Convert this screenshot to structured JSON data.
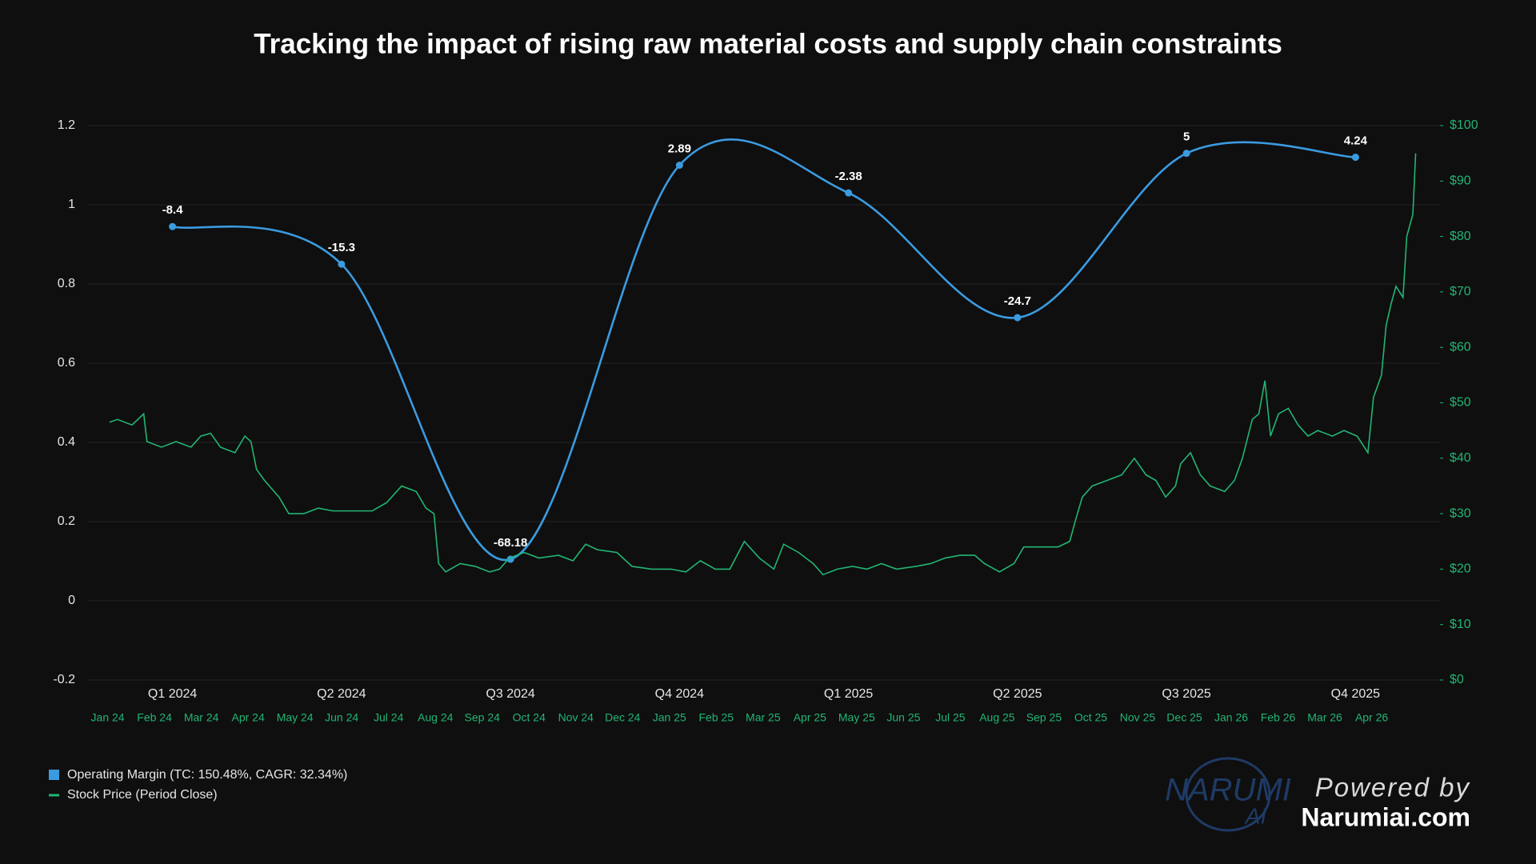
{
  "chart_data": {
    "type": "line",
    "title": "Tracking the impact of rising raw material costs and supply chain constraints",
    "categories": [
      "Q1 2024",
      "Q2 2024",
      "Q3 2024",
      "Q4 2024",
      "Q1 2025",
      "Q2 2025",
      "Q3 2025",
      "Q4 2025"
    ],
    "ylim": [
      -0.2,
      1.2
    ],
    "yticks": [
      -0.2,
      0,
      0.2,
      0.4,
      0.6,
      0.8,
      1,
      1.2
    ],
    "y2lim": [
      0,
      100
    ],
    "y2ticks": [
      {
        "value": 0,
        "label": "$0"
      },
      {
        "value": 10,
        "label": "$10"
      },
      {
        "value": 20,
        "label": "$20"
      },
      {
        "value": 30,
        "label": "$30"
      },
      {
        "value": 40,
        "label": "$40"
      },
      {
        "value": 50,
        "label": "$50"
      },
      {
        "value": 60,
        "label": "$60"
      },
      {
        "value": 70,
        "label": "$70"
      },
      {
        "value": 80,
        "label": "$80"
      },
      {
        "value": 90,
        "label": "$90"
      },
      {
        "value": 100,
        "label": "$100"
      }
    ],
    "x2lim": [
      -0.42,
      28.46
    ],
    "x2ticks": [
      {
        "value": 0,
        "label": "Jan 24"
      },
      {
        "value": 1,
        "label": "Feb 24"
      },
      {
        "value": 2,
        "label": "Mar 24"
      },
      {
        "value": 3,
        "label": "Apr 24"
      },
      {
        "value": 4,
        "label": "May 24"
      },
      {
        "value": 5,
        "label": "Jun 24"
      },
      {
        "value": 6,
        "label": "Jul 24"
      },
      {
        "value": 7,
        "label": "Aug 24"
      },
      {
        "value": 8,
        "label": "Sep 24"
      },
      {
        "value": 9,
        "label": "Oct 24"
      },
      {
        "value": 10,
        "label": "Nov 24"
      },
      {
        "value": 11,
        "label": "Dec 24"
      },
      {
        "value": 12,
        "label": "Jan 25"
      },
      {
        "value": 13,
        "label": "Feb 25"
      },
      {
        "value": 14,
        "label": "Mar 25"
      },
      {
        "value": 15,
        "label": "Apr 25"
      },
      {
        "value": 16,
        "label": "May 25"
      },
      {
        "value": 17,
        "label": "Jun 25"
      },
      {
        "value": 18,
        "label": "Jul 25"
      },
      {
        "value": 19,
        "label": "Aug 25"
      },
      {
        "value": 20,
        "label": "Sep 25"
      },
      {
        "value": 21,
        "label": "Oct 25"
      },
      {
        "value": 22,
        "label": "Nov 25"
      },
      {
        "value": 23,
        "label": "Dec 25"
      },
      {
        "value": 24,
        "label": "Jan 26"
      },
      {
        "value": 25,
        "label": "Feb 26"
      },
      {
        "value": 26,
        "label": "Mar 26"
      },
      {
        "value": 27,
        "label": "Apr 26"
      }
    ],
    "grid": true,
    "series": [
      {
        "name": "Operating Margin (TC: 150.48%, CAGR: 32.34%)",
        "color": "#3b9be0",
        "values": [
          0.945,
          0.85,
          0.105,
          1.1,
          1.03,
          0.715,
          1.13,
          1.12
        ],
        "point_labels": [
          "-8.4",
          "-15.3",
          "-68.18",
          "2.89",
          "-2.38",
          "-24.7",
          "5",
          "4.24"
        ]
      },
      {
        "name": "Stock Price (Period Close)",
        "color": "#22b573",
        "axis": "y2",
        "x": [
          0.04,
          0.21,
          0.52,
          0.77,
          0.84,
          1.15,
          1.46,
          1.78,
          1.99,
          2.2,
          2.41,
          2.72,
          2.93,
          3.06,
          3.18,
          3.35,
          3.66,
          3.87,
          4.19,
          4.5,
          4.81,
          5.23,
          5.65,
          5.96,
          6.28,
          6.59,
          6.8,
          6.97,
          7.07,
          7.22,
          7.53,
          7.85,
          8.16,
          8.37,
          8.58,
          8.9,
          9.21,
          9.63,
          9.94,
          10.21,
          10.46,
          10.88,
          11.2,
          11.62,
          12.03,
          12.35,
          12.66,
          12.98,
          13.29,
          13.6,
          13.92,
          14.23,
          14.44,
          14.76,
          15.07,
          15.28,
          15.59,
          15.91,
          16.22,
          16.53,
          16.85,
          17.27,
          17.58,
          17.89,
          18.21,
          18.52,
          18.73,
          19.05,
          19.36,
          19.57,
          19.88,
          20.3,
          20.55,
          20.68,
          20.82,
          21.03,
          21.35,
          21.66,
          21.93,
          22.18,
          22.39,
          22.6,
          22.81,
          22.92,
          23.13,
          23.34,
          23.55,
          23.86,
          24.07,
          24.24,
          24.45,
          24.59,
          24.72,
          24.84,
          25.01,
          25.22,
          25.43,
          25.64,
          25.85,
          26.16,
          26.41,
          26.69,
          26.92,
          27.04,
          27.21,
          27.31,
          27.42,
          27.52,
          27.67,
          27.75,
          27.88,
          27.94
        ],
        "values": [
          46.5,
          47,
          46,
          48,
          43,
          42,
          43,
          42,
          44,
          44.5,
          42,
          41,
          44,
          43,
          38,
          36,
          33,
          30,
          30,
          31,
          30.5,
          30.5,
          30.5,
          32,
          35,
          34,
          31,
          30,
          21,
          19.5,
          21,
          20.5,
          19.5,
          20,
          22,
          23,
          22,
          22.5,
          21.5,
          24.5,
          23.5,
          23,
          20.5,
          20,
          20,
          19.5,
          21.5,
          20,
          20,
          25,
          22,
          20,
          24.5,
          23,
          21,
          19,
          20,
          20.5,
          20,
          21,
          20,
          20.5,
          21,
          22,
          22.5,
          22.5,
          21,
          19.5,
          21,
          24,
          24,
          24,
          25,
          29,
          33,
          35,
          36,
          37,
          40,
          37,
          36,
          33,
          35,
          39,
          41,
          37,
          35,
          34,
          36,
          40,
          47,
          48,
          54,
          44,
          48,
          49,
          46,
          44,
          45,
          44,
          45,
          44,
          41,
          51,
          55,
          64,
          68,
          71,
          69,
          80,
          84,
          95
        ]
      }
    ],
    "watermark": {
      "logo": "NARUMI",
      "logo_sub": "AI",
      "line1": "Powered by",
      "line2": "Narumiai.com"
    }
  }
}
